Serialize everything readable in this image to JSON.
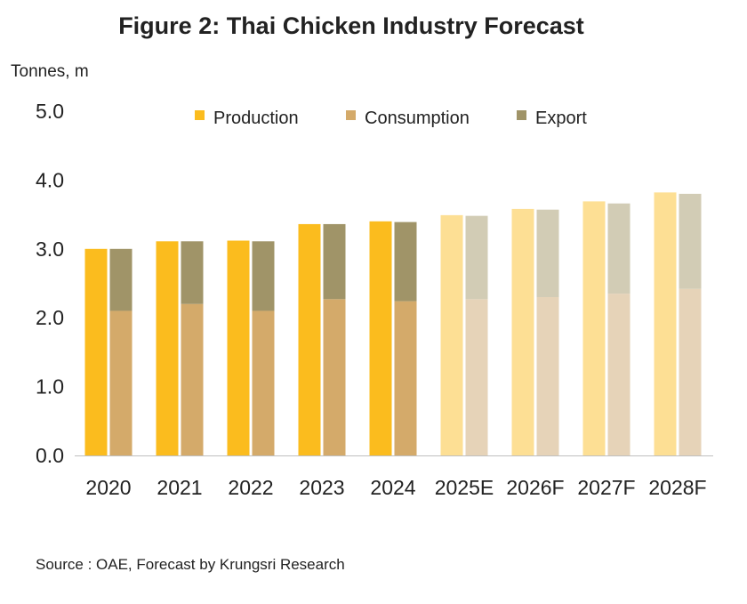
{
  "title": "Figure 2: Thai Chicken Industry Forecast",
  "unit_label": "Tonnes, m",
  "source": "Source : OAE, Forecast by Krungsri Research",
  "chart_data": {
    "type": "bar",
    "stacked_second_bar": true,
    "categories": [
      "2020",
      "2021",
      "2022",
      "2023",
      "2024",
      "2025E",
      "2026F",
      "2027F",
      "2028F"
    ],
    "forecast_categories": [
      "2025E",
      "2026F",
      "2027F",
      "2028F"
    ],
    "series": [
      {
        "name": "Production",
        "color": "#FBBC1E",
        "forecast_color": "#FDDF94",
        "values": [
          3.0,
          3.11,
          3.12,
          3.36,
          3.4,
          3.49,
          3.58,
          3.69,
          3.82
        ]
      },
      {
        "name": "Consumption",
        "color": "#D4AA6A",
        "forecast_color": "#E6D3B8",
        "values": [
          2.1,
          2.2,
          2.1,
          2.27,
          2.24,
          2.27,
          2.3,
          2.35,
          2.42
        ]
      },
      {
        "name": "Export",
        "color": "#A09468",
        "forecast_color": "#D2CCB5",
        "values": [
          0.9,
          0.91,
          1.01,
          1.09,
          1.15,
          1.21,
          1.27,
          1.31,
          1.38
        ]
      }
    ],
    "ylim": [
      0,
      5
    ],
    "yticks": [
      "0.0",
      "1.0",
      "2.0",
      "3.0",
      "4.0",
      "5.0"
    ],
    "ylabel": "Tonnes, m",
    "xlabel": "",
    "grid": false,
    "legend": "top"
  }
}
